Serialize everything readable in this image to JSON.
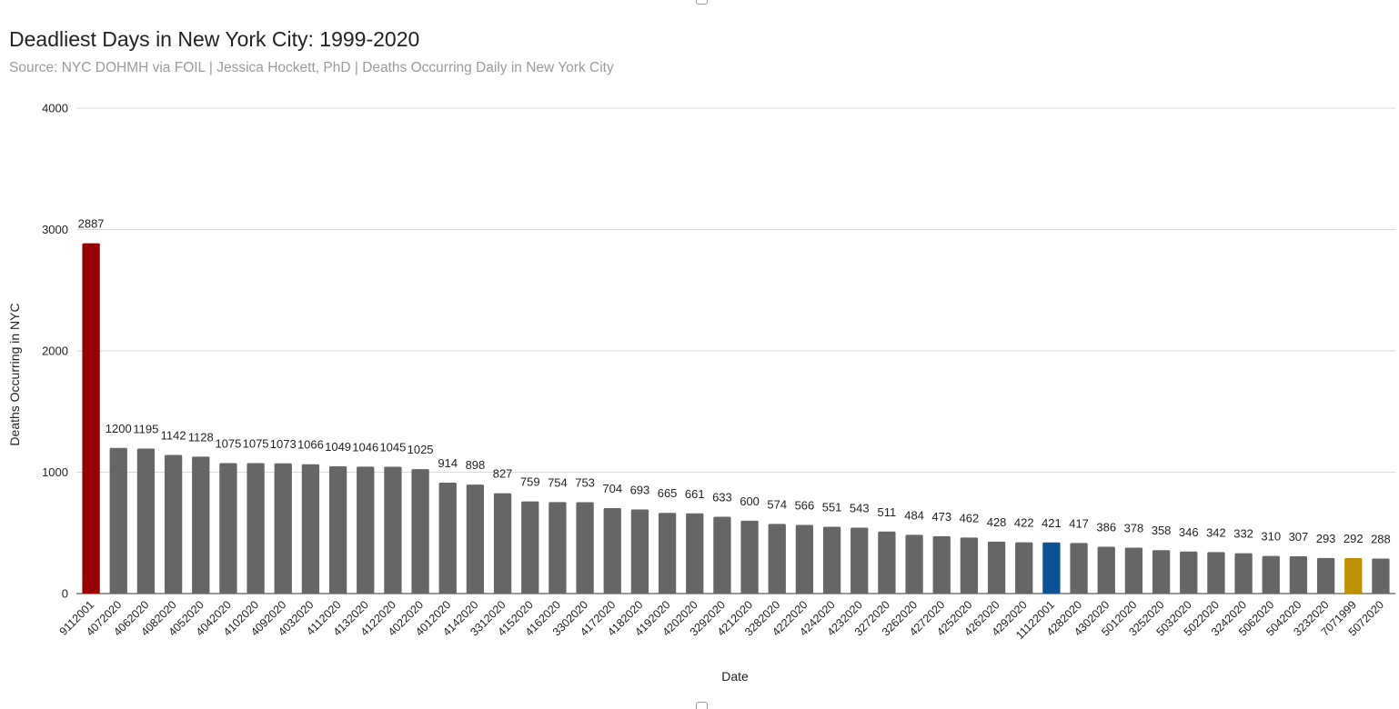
{
  "chart_data": {
    "type": "bar",
    "title": "Deadliest Days in New York City: 1999-2020",
    "subtitle": "Source: NYC DOHMH via FOIL | Jessica Hockett, PhD | Deaths Occurring Daily in New York City",
    "xlabel": "Date",
    "ylabel": "Deaths Occurring in NYC",
    "ylim": [
      0,
      4000
    ],
    "yticks": [
      0,
      1000,
      2000,
      3000,
      4000
    ],
    "grid": true,
    "legend": "none",
    "categories": [
      "9112001",
      "4072020",
      "4062020",
      "4082020",
      "4052020",
      "4042020",
      "4102020",
      "4092020",
      "4032020",
      "4112020",
      "4132020",
      "4122020",
      "4022020",
      "4012020",
      "4142020",
      "3312020",
      "4152020",
      "4162020",
      "3302020",
      "4172020",
      "4182020",
      "4192020",
      "4202020",
      "3292020",
      "4212020",
      "3282020",
      "4222020",
      "4242020",
      "4232020",
      "3272020",
      "3262020",
      "4272020",
      "4252020",
      "4262020",
      "4292020",
      "11122001",
      "4282020",
      "4302020",
      "5012020",
      "3252020",
      "5032020",
      "5022020",
      "3242020",
      "5062020",
      "5042020",
      "3232020",
      "7071999",
      "5072020"
    ],
    "values": [
      2887,
      1200,
      1195,
      1142,
      1128,
      1075,
      1075,
      1073,
      1066,
      1049,
      1046,
      1045,
      1025,
      914,
      898,
      827,
      759,
      754,
      753,
      704,
      693,
      665,
      661,
      633,
      600,
      574,
      566,
      551,
      543,
      511,
      484,
      473,
      462,
      428,
      422,
      421,
      417,
      386,
      378,
      358,
      346,
      342,
      332,
      310,
      307,
      293,
      292,
      288
    ],
    "colors": {
      "default": "#666666",
      "highlight_red": "#990000",
      "highlight_blue": "#0b5394",
      "highlight_gold": "#bf9000"
    },
    "highlighted": {
      "9112001": "highlight_red",
      "11122001": "highlight_blue",
      "7071999": "highlight_gold"
    }
  }
}
